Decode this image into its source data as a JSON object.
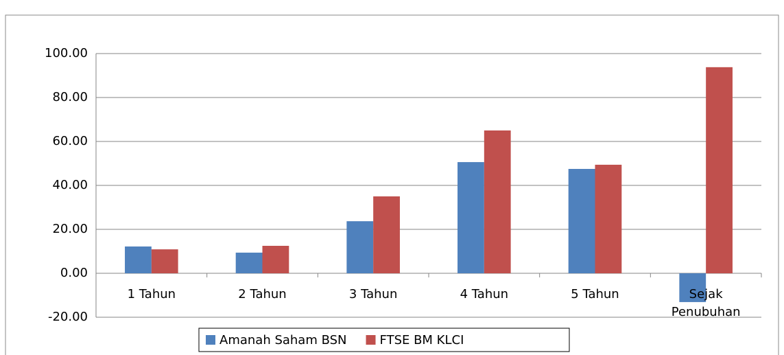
{
  "chart_data": {
    "type": "bar",
    "categories": [
      "1 Tahun",
      "2 Tahun",
      "3 Tahun",
      "4 Tahun",
      "5 Tahun",
      "Sejak Penubuhan"
    ],
    "series": [
      {
        "name": "Amanah Saham BSN",
        "color": "#4f81bd",
        "values": [
          12.2,
          9.4,
          23.7,
          50.6,
          47.5,
          -13.1
        ]
      },
      {
        "name": "FTSE BM KLCI",
        "color": "#c0504d",
        "values": [
          10.9,
          12.5,
          35.0,
          65.0,
          49.4,
          93.8
        ]
      }
    ],
    "ylim": [
      -20,
      100
    ],
    "yticks": [
      {
        "value": -20,
        "label": "-20.00"
      },
      {
        "value": 0,
        "label": "0.00"
      },
      {
        "value": 20,
        "label": "20.00"
      },
      {
        "value": 40,
        "label": "40.00"
      },
      {
        "value": 60,
        "label": "60.00"
      },
      {
        "value": 80,
        "label": "80.00"
      },
      {
        "value": 100,
        "label": "100.00"
      }
    ],
    "grid": true,
    "legend": "bottom"
  }
}
